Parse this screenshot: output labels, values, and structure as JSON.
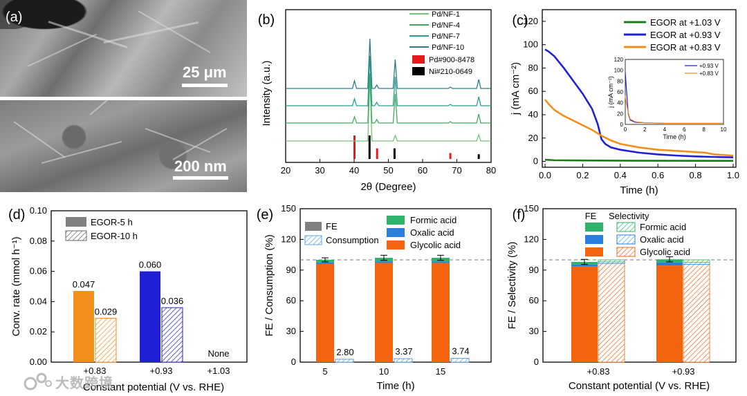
{
  "panels": {
    "a": {
      "letter": "(a)",
      "scalebar_top": "25 μm",
      "scalebar_bottom": "200 nm"
    }
  },
  "watermark": "大数跨境",
  "chart_data": [
    {
      "panel": "(b)",
      "type": "line",
      "title": "",
      "xlabel": "2θ (Degree)",
      "ylabel": "Intensity (a.u.)",
      "xlim": [
        20,
        80
      ],
      "xticks": [
        20,
        30,
        40,
        50,
        60,
        70,
        80
      ],
      "peaks": [
        40.1,
        46.6,
        52.0,
        68.1,
        76.4,
        44.6
      ],
      "series": [
        {
          "name": "Pd/NF-1",
          "color": "#74c476",
          "offset": 0,
          "peak_heights": [
            0,
            0,
            8,
            0,
            9,
            95
          ]
        },
        {
          "name": "Pd/NF-4",
          "color": "#41ab5d",
          "offset": 1,
          "peak_heights": [
            9,
            5,
            42,
            2,
            13,
            72
          ]
        },
        {
          "name": "Pd/NF-7",
          "color": "#2a9d8f",
          "offset": 2,
          "peak_heights": [
            10,
            5,
            42,
            2,
            13,
            72
          ]
        },
        {
          "name": "Pd/NF-10",
          "color": "#2b7a86",
          "offset": 3,
          "peak_heights": [
            11,
            5,
            42,
            2,
            13,
            72
          ]
        }
      ],
      "reference_lines": [
        {
          "name": "Pd#900-8478",
          "color": "#e41a1c",
          "x": [
            40.1,
            46.7,
            68.1
          ],
          "h": [
            1.0,
            0.45,
            0.25
          ]
        },
        {
          "name": "Ni#210-0649",
          "color": "#000000",
          "x": [
            44.5,
            51.8,
            76.4
          ],
          "h": [
            1.0,
            0.45,
            0.2
          ]
        }
      ]
    },
    {
      "panel": "(c)",
      "type": "line",
      "xlabel": "Time (h)",
      "ylabel": "j (mA cm⁻²)",
      "xlim": [
        0.0,
        1.0
      ],
      "ylim": [
        -5,
        130
      ],
      "xticks": [
        0.0,
        0.2,
        0.4,
        0.6,
        0.8,
        1.0
      ],
      "yticks": [
        0,
        20,
        40,
        60,
        80,
        100,
        120
      ],
      "series": [
        {
          "name": "EGOR at +1.03 V",
          "color": "#1a7a1a",
          "x": [
            0,
            0.05,
            0.2,
            0.5,
            1.0
          ],
          "y": [
            1.5,
            1.0,
            0.8,
            0.6,
            0.5
          ]
        },
        {
          "name": "EGOR at +0.93 V",
          "color": "#1f1fd6",
          "x": [
            0,
            0.02,
            0.05,
            0.1,
            0.15,
            0.2,
            0.25,
            0.28,
            0.3,
            0.32,
            0.35,
            0.4,
            0.5,
            0.6,
            0.7,
            0.8,
            0.9,
            1.0
          ],
          "y": [
            96,
            94,
            90,
            80,
            69,
            58,
            45,
            32,
            19,
            15,
            12,
            10,
            7.5,
            6,
            5,
            4.3,
            3.8,
            3.5
          ]
        },
        {
          "name": "EGOR at +0.83 V",
          "color": "#f28e1c",
          "x": [
            0,
            0.02,
            0.05,
            0.1,
            0.15,
            0.2,
            0.25,
            0.3,
            0.35,
            0.4,
            0.5,
            0.6,
            0.7,
            0.8,
            0.85,
            0.9,
            1.0
          ],
          "y": [
            53,
            49,
            44,
            39,
            35,
            31,
            27,
            22,
            18,
            15,
            12,
            10,
            9,
            8,
            7.5,
            6,
            5
          ]
        }
      ],
      "inset": {
        "xlabel": "Time (h)",
        "ylabel": "j (mA cm⁻²)",
        "xlim": [
          0,
          10
        ],
        "ylim": [
          0,
          120
        ],
        "xticks": [
          0,
          2,
          4,
          6,
          8,
          10
        ],
        "yticks": [
          0,
          20,
          40,
          60,
          80,
          100,
          120
        ],
        "series": [
          {
            "name": "+0.93 V",
            "color": "#1f1fd6",
            "x": [
              0,
              0.1,
              0.3,
              0.5,
              1,
              2,
              4,
              10
            ],
            "y": [
              96,
              70,
              20,
              8,
              4,
              3,
              2,
              2
            ]
          },
          {
            "name": "+0.83 V",
            "color": "#f28e1c",
            "x": [
              0,
              0.1,
              0.3,
              0.5,
              1,
              2,
              4,
              10
            ],
            "y": [
              53,
              40,
              22,
              10,
              5,
              3,
              2,
              2
            ]
          }
        ]
      }
    },
    {
      "panel": "(d)",
      "type": "bar",
      "xlabel": "Constant potential (V vs. RHE)",
      "ylabel": "Conv. rate (mmol h⁻¹)",
      "ylim": [
        0,
        0.1
      ],
      "yticks": [
        "0.00",
        "0.02",
        "0.04",
        "0.06",
        "0.08",
        "0.10"
      ],
      "categories": [
        "+0.83",
        "+0.93",
        "+1.03"
      ],
      "series": [
        {
          "name": "EGOR-5 h",
          "values": [
            0.047,
            0.06,
            null
          ],
          "labels": [
            "0.047",
            "0.060",
            ""
          ]
        },
        {
          "name": "EGOR-10 h",
          "values": [
            0.029,
            0.036,
            null
          ],
          "labels": [
            "0.029",
            "0.036",
            ""
          ]
        }
      ],
      "bar_colors": [
        "#f28e1c",
        "#1f1fd6"
      ],
      "annotations": [
        "None"
      ]
    },
    {
      "panel": "(e)",
      "type": "bar",
      "xlabel": "Time (h)",
      "ylabel": "FE / Consumption (%)",
      "ylim": [
        0,
        150
      ],
      "yticks": [
        0,
        30,
        60,
        90,
        120,
        150
      ],
      "reference_y": 100,
      "categories": [
        "5",
        "10",
        "15"
      ],
      "stacked_FE": [
        {
          "name": "Glycolic acid",
          "color": "#f4640e",
          "values": [
            96,
            97,
            97
          ]
        },
        {
          "name": "Oxalic acid",
          "color": "#2a7fdc",
          "values": [
            1.5,
            1.5,
            1.5
          ]
        },
        {
          "name": "Formic acid",
          "color": "#2fb36b",
          "values": [
            2.5,
            3.5,
            3.5
          ]
        }
      ],
      "error": [
        2,
        2.5,
        2.5
      ],
      "consumption": {
        "name": "Consumption",
        "values": [
          2.8,
          3.37,
          3.74
        ],
        "labels": [
          "2.80",
          "3.37",
          "3.74"
        ]
      },
      "legend_fe": "FE"
    },
    {
      "panel": "(f)",
      "type": "bar",
      "xlabel": "Constant potential (V vs. RHE)",
      "ylabel": "FE / Selectivity (%)",
      "ylim": [
        0,
        150
      ],
      "yticks": [
        0,
        30,
        60,
        90,
        120,
        150
      ],
      "reference_y": 100,
      "categories": [
        "+0.83",
        "+0.93"
      ],
      "legend_headers": [
        "FE",
        "Selectivity"
      ],
      "stacked_FE": [
        {
          "name": "Glycolic acid",
          "color": "#f4640e",
          "values": [
            93.5,
            94.5
          ]
        },
        {
          "name": "Oxalic acid",
          "color": "#2a7fdc",
          "values": [
            2.0,
            3.0
          ]
        },
        {
          "name": "Formic acid",
          "color": "#2fb36b",
          "values": [
            2.5,
            3.0
          ]
        }
      ],
      "error": [
        2.5,
        2.5
      ],
      "stacked_selectivity": [
        {
          "name": "Glycolic acid",
          "color": "#f4640e",
          "values": [
            96.5,
            95.5
          ]
        },
        {
          "name": "Oxalic acid",
          "color": "#2a7fdc",
          "values": [
            1.5,
            2.0
          ]
        },
        {
          "name": "Formic acid",
          "color": "#2fb36b",
          "values": [
            2.0,
            2.5
          ]
        }
      ]
    }
  ]
}
